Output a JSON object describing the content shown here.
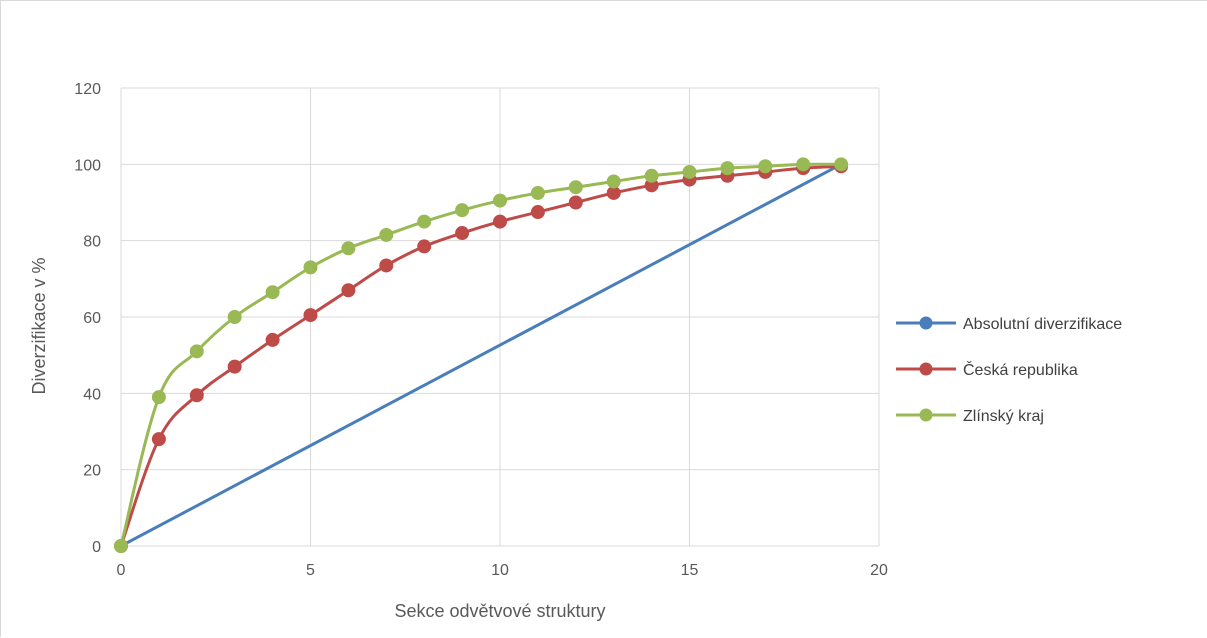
{
  "chart_data": {
    "type": "line",
    "title": "",
    "xlabel": "Sekce odvětvové struktury",
    "ylabel": "Diverzifikace v %",
    "xlim": [
      0,
      20
    ],
    "ylim": [
      0,
      120
    ],
    "x_ticks": [
      "0",
      "5",
      "10",
      "15",
      "20"
    ],
    "y_ticks": [
      "0",
      "20",
      "40",
      "60",
      "80",
      "100",
      "120"
    ],
    "x_tick_values": [
      0,
      5,
      10,
      15,
      20
    ],
    "y_tick_values": [
      0,
      20,
      40,
      60,
      80,
      100,
      120
    ],
    "grid": true,
    "legend_position": "right",
    "series": [
      {
        "name": "Absolutní diverzifikace",
        "color": "#4a7ebb",
        "markers": false,
        "smooth": false,
        "x": [
          0,
          19
        ],
        "values": [
          0,
          100
        ]
      },
      {
        "name": "Česká republika",
        "color": "#be4b48",
        "markers": true,
        "smooth": true,
        "x": [
          0,
          1,
          2,
          3,
          4,
          5,
          6,
          7,
          8,
          9,
          10,
          11,
          12,
          13,
          14,
          15,
          16,
          17,
          18,
          19
        ],
        "values": [
          0,
          28,
          39.5,
          47,
          54,
          60.5,
          67,
          73.5,
          78.5,
          82,
          85,
          87.5,
          90,
          92.5,
          94.5,
          96,
          97,
          98,
          99,
          99.5
        ]
      },
      {
        "name": "Zlínský kraj",
        "color": "#98b954",
        "markers": true,
        "smooth": true,
        "x": [
          0,
          1,
          2,
          3,
          4,
          5,
          6,
          7,
          8,
          9,
          10,
          11,
          12,
          13,
          14,
          15,
          16,
          17,
          18,
          19
        ],
        "values": [
          0,
          39,
          51,
          60,
          66.5,
          73,
          78,
          81.5,
          85,
          88,
          90.5,
          92.5,
          94,
          95.5,
          97,
          98,
          99,
          99.5,
          100,
          100
        ]
      }
    ]
  }
}
